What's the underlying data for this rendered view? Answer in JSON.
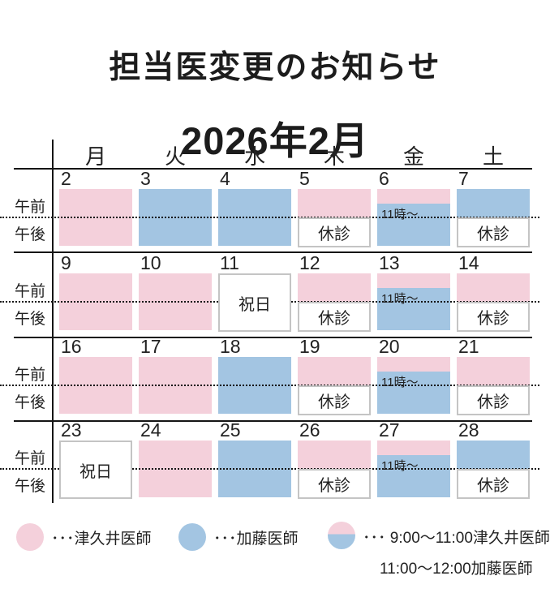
{
  "page": {
    "title": "担当医変更のお知らせ",
    "month": "2026年2月"
  },
  "calendar": {
    "weekday_headers": [
      "月",
      "火",
      "水",
      "木",
      "金",
      "土"
    ],
    "row_labels": {
      "morning": "午前",
      "afternoon": "午後"
    },
    "labels": {
      "closed": "休診",
      "holiday": "祝日",
      "split_time": "11時～"
    },
    "weeks": [
      {
        "days": [
          {
            "date": "2",
            "morning": "pink",
            "afternoon": "pink"
          },
          {
            "date": "3",
            "morning": "blue",
            "afternoon": "blue"
          },
          {
            "date": "4",
            "morning": "blue",
            "afternoon": "blue"
          },
          {
            "date": "5",
            "morning": "pink",
            "afternoon": "closed"
          },
          {
            "date": "6",
            "morning": "split",
            "afternoon": "blue"
          },
          {
            "date": "7",
            "morning": "blue",
            "afternoon": "closed"
          }
        ]
      },
      {
        "days": [
          {
            "date": "9",
            "morning": "pink",
            "afternoon": "pink"
          },
          {
            "date": "10",
            "morning": "pink",
            "afternoon": "pink"
          },
          {
            "date": "11",
            "holiday": true
          },
          {
            "date": "12",
            "morning": "pink",
            "afternoon": "closed"
          },
          {
            "date": "13",
            "morning": "split",
            "afternoon": "blue"
          },
          {
            "date": "14",
            "morning": "pink",
            "afternoon": "closed"
          }
        ]
      },
      {
        "days": [
          {
            "date": "16",
            "morning": "pink",
            "afternoon": "pink"
          },
          {
            "date": "17",
            "morning": "pink",
            "afternoon": "pink"
          },
          {
            "date": "18",
            "morning": "blue",
            "afternoon": "blue"
          },
          {
            "date": "19",
            "morning": "pink",
            "afternoon": "closed"
          },
          {
            "date": "20",
            "morning": "split",
            "afternoon": "blue"
          },
          {
            "date": "21",
            "morning": "pink",
            "afternoon": "closed"
          }
        ]
      },
      {
        "days": [
          {
            "date": "23",
            "holiday": true
          },
          {
            "date": "24",
            "morning": "pink",
            "afternoon": "pink"
          },
          {
            "date": "25",
            "morning": "blue",
            "afternoon": "blue"
          },
          {
            "date": "26",
            "morning": "pink",
            "afternoon": "closed"
          },
          {
            "date": "27",
            "morning": "split",
            "afternoon": "blue"
          },
          {
            "date": "28",
            "morning": "blue",
            "afternoon": "closed"
          }
        ]
      }
    ]
  },
  "legend": {
    "items": [
      {
        "swatch": "pink",
        "label": "･･･津久井医師"
      },
      {
        "swatch": "blue",
        "label": "･･･加藤医師"
      },
      {
        "swatch": "split",
        "label": "･･･ 9:00～11:00津久井医師",
        "label2": "11:00～12:00加藤医師"
      }
    ]
  },
  "colors": {
    "pink": "#f4d0db",
    "blue": "#a3c5e2",
    "box_border": "#c4c4c4",
    "line": "#151515"
  }
}
